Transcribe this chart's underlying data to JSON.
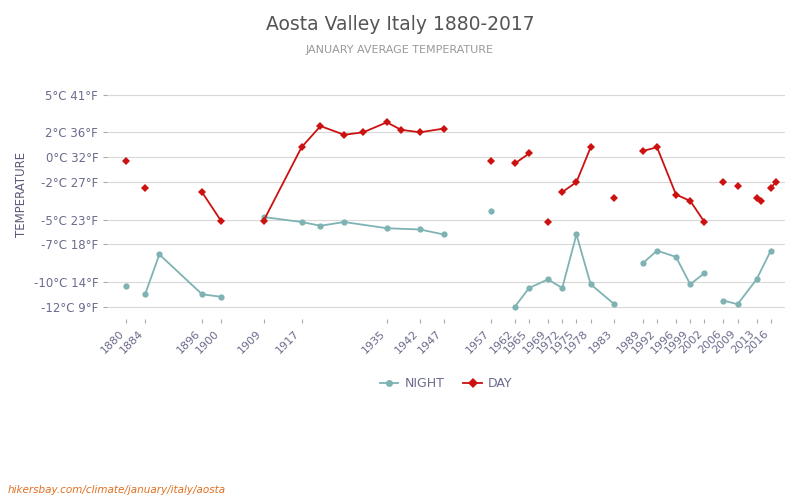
{
  "title": "Aosta Valley Italy 1880-2017",
  "subtitle": "JANUARY AVERAGE TEMPERATURE",
  "ylabel": "TEMPERATURE",
  "watermark": "hikersbay.com/climate/january/italy/aosta",
  "title_color": "#555555",
  "subtitle_color": "#999999",
  "ylabel_color": "#5a5a7a",
  "tick_color": "#6b6b8d",
  "background_color": "#ffffff",
  "grid_color": "#d8d8d8",
  "night_color": "#7fb3b3",
  "day_color": "#cc1111",
  "ylim": [
    -13,
    7
  ],
  "yticks_celsius": [
    5,
    2,
    0,
    -2,
    -5,
    -7,
    -10,
    -12
  ],
  "yticks_fahrenheit": [
    41,
    36,
    32,
    27,
    23,
    18,
    14,
    9
  ],
  "x_tick_years": [
    1880,
    1884,
    1896,
    1900,
    1909,
    1917,
    1935,
    1942,
    1947,
    1957,
    1962,
    1965,
    1969,
    1972,
    1975,
    1978,
    1983,
    1989,
    1992,
    1996,
    1999,
    2002,
    2006,
    2009,
    2013,
    2016
  ],
  "night_segments": [
    [
      [
        1880
      ],
      [
        -10.3
      ]
    ],
    [
      [
        1884,
        1887,
        1896,
        1900
      ],
      [
        -11.0,
        -7.8,
        -11.0,
        -11.2
      ]
    ],
    [
      [
        1909,
        1917,
        1921,
        1926,
        1935,
        1942,
        1947
      ],
      [
        -4.8,
        -5.2,
        -5.5,
        -5.2,
        -5.7,
        -5.8,
        -6.2
      ]
    ],
    [
      [
        1957
      ],
      [
        -4.3
      ]
    ],
    [
      [
        1962,
        1965,
        1969,
        1972,
        1975,
        1978,
        1983
      ],
      [
        -12.0,
        -10.5,
        -9.8,
        -10.5,
        -6.2,
        -10.2,
        -11.8
      ]
    ],
    [
      [
        1989,
        1992,
        1996,
        1999,
        2002
      ],
      [
        -8.5,
        -7.5,
        -8.0,
        -10.2,
        -9.3
      ]
    ],
    [
      [
        2006,
        2009,
        2013,
        2016
      ],
      [
        -11.5,
        -11.8,
        -9.8,
        -7.5
      ]
    ]
  ],
  "day_segments": [
    [
      [
        1880
      ],
      [
        -0.3
      ]
    ],
    [
      [
        1884
      ],
      [
        -2.5
      ]
    ],
    [
      [
        1896,
        1900
      ],
      [
        -2.8,
        -5.1
      ]
    ],
    [
      [
        1909,
        1917,
        1921,
        1926,
        1930,
        1935,
        1938,
        1942,
        1947
      ],
      [
        -5.1,
        0.8,
        2.5,
        1.8,
        2.0,
        2.8,
        2.2,
        2.0,
        2.3
      ]
    ],
    [
      [
        1957
      ],
      [
        -0.3
      ]
    ],
    [
      [
        1962,
        1965
      ],
      [
        -0.5,
        0.3
      ]
    ],
    [
      [
        1969
      ],
      [
        -5.2
      ]
    ],
    [
      [
        1972,
        1975,
        1978
      ],
      [
        -2.8,
        -2.0,
        0.8
      ]
    ],
    [
      [
        1983
      ],
      [
        -3.3
      ]
    ],
    [
      [
        1989,
        1992,
        1996,
        1999,
        2002
      ],
      [
        0.5,
        0.8,
        -3.0,
        -3.5,
        -5.2
      ]
    ],
    [
      [
        2006
      ],
      [
        -2.0
      ]
    ],
    [
      [
        2009
      ],
      [
        -2.3
      ]
    ],
    [
      [
        2013,
        2014
      ],
      [
        -3.3,
        -3.5
      ]
    ],
    [
      [
        2016,
        2017
      ],
      [
        -2.5,
        -2.0
      ]
    ]
  ]
}
